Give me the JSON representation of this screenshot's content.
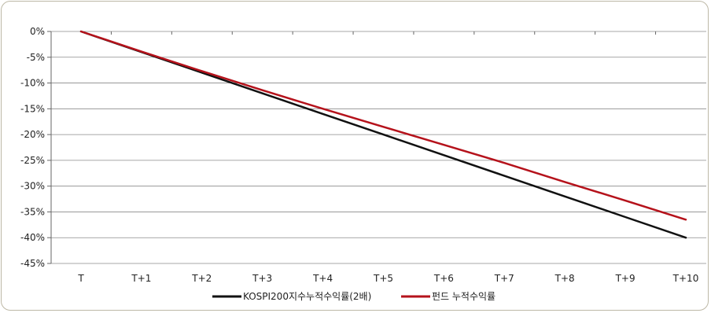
{
  "chart_data": {
    "type": "line",
    "categories": [
      "T",
      "T+1",
      "T+2",
      "T+3",
      "T+4",
      "T+5",
      "T+6",
      "T+7",
      "T+8",
      "T+9",
      "T+10"
    ],
    "ylim": [
      -45,
      0
    ],
    "yticks": [
      0,
      -5,
      -10,
      -15,
      -20,
      -25,
      -30,
      -35,
      -40,
      -45
    ],
    "ytick_labels": [
      "0%",
      "-5%",
      "-10%",
      "-15%",
      "-20%",
      "-25%",
      "-30%",
      "-35%",
      "-40%",
      "-45%"
    ],
    "grid": true,
    "legend_position": "bottom",
    "series": [
      {
        "name": "KOSPI200지수누적수익률(2배)",
        "color": "#111111",
        "values": [
          0,
          -4,
          -8,
          -12,
          -16,
          -20,
          -24,
          -28,
          -32,
          -36,
          -40
        ]
      },
      {
        "name": "펀드 누적수익률",
        "color": "#b5121b",
        "values": [
          0,
          -3.9,
          -7.7,
          -11.4,
          -15,
          -18.5,
          -22,
          -25.5,
          -29.2,
          -32.8,
          -36.5
        ]
      }
    ]
  }
}
